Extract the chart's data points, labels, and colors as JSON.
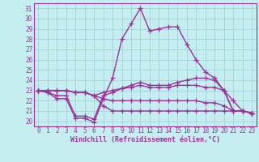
{
  "xlabel": "Windchill (Refroidissement éolien,°C)",
  "hours": [
    0,
    1,
    2,
    3,
    4,
    5,
    6,
    7,
    8,
    9,
    10,
    11,
    12,
    13,
    14,
    15,
    16,
    17,
    18,
    19,
    20,
    21,
    22,
    23
  ],
  "line1": [
    23,
    22.8,
    22.2,
    22.2,
    20.3,
    20.3,
    19.9,
    22.2,
    24.2,
    28,
    29.5,
    31,
    28.8,
    29,
    29.2,
    29.2,
    27.5,
    26,
    24.8,
    24.2,
    23,
    21,
    21,
    20.8
  ],
  "line2": [
    23,
    22.8,
    22.5,
    22.5,
    20.5,
    20.5,
    20.2,
    22.5,
    22.8,
    23.2,
    23.5,
    23.8,
    23.5,
    23.5,
    23.5,
    23.8,
    24,
    24.2,
    24.2,
    24,
    23,
    21,
    21,
    20.8
  ],
  "line3": [
    23,
    23,
    23,
    23,
    22.8,
    22.8,
    22.5,
    22.8,
    23,
    23.2,
    23.3,
    23.5,
    23.3,
    23.3,
    23.3,
    23.5,
    23.5,
    23.5,
    23.3,
    23.3,
    23,
    22,
    21,
    20.8
  ],
  "line4": [
    23,
    23,
    23,
    23,
    22.8,
    22.8,
    22.5,
    22.2,
    22,
    22,
    22,
    22,
    22,
    22,
    22,
    22,
    22,
    22,
    21.8,
    21.8,
    21.5,
    21,
    21,
    20.8
  ],
  "line5": [
    23,
    23,
    23,
    23,
    22.8,
    22.8,
    22.5,
    21.5,
    21,
    21,
    21,
    21,
    21,
    21,
    21,
    21,
    21,
    21,
    21,
    21,
    21,
    21,
    21,
    20.8
  ],
  "ylim": [
    19.5,
    31.5
  ],
  "yticks": [
    20,
    21,
    22,
    23,
    24,
    25,
    26,
    27,
    28,
    29,
    30,
    31
  ],
  "bg_color": "#c6eef0",
  "grid_color": "#a0d4d8",
  "line_color": "#993399",
  "line_width": 1.0,
  "marker": "+",
  "marker_size": 4,
  "tick_fontsize": 5.5,
  "xlabel_fontsize": 6.0
}
